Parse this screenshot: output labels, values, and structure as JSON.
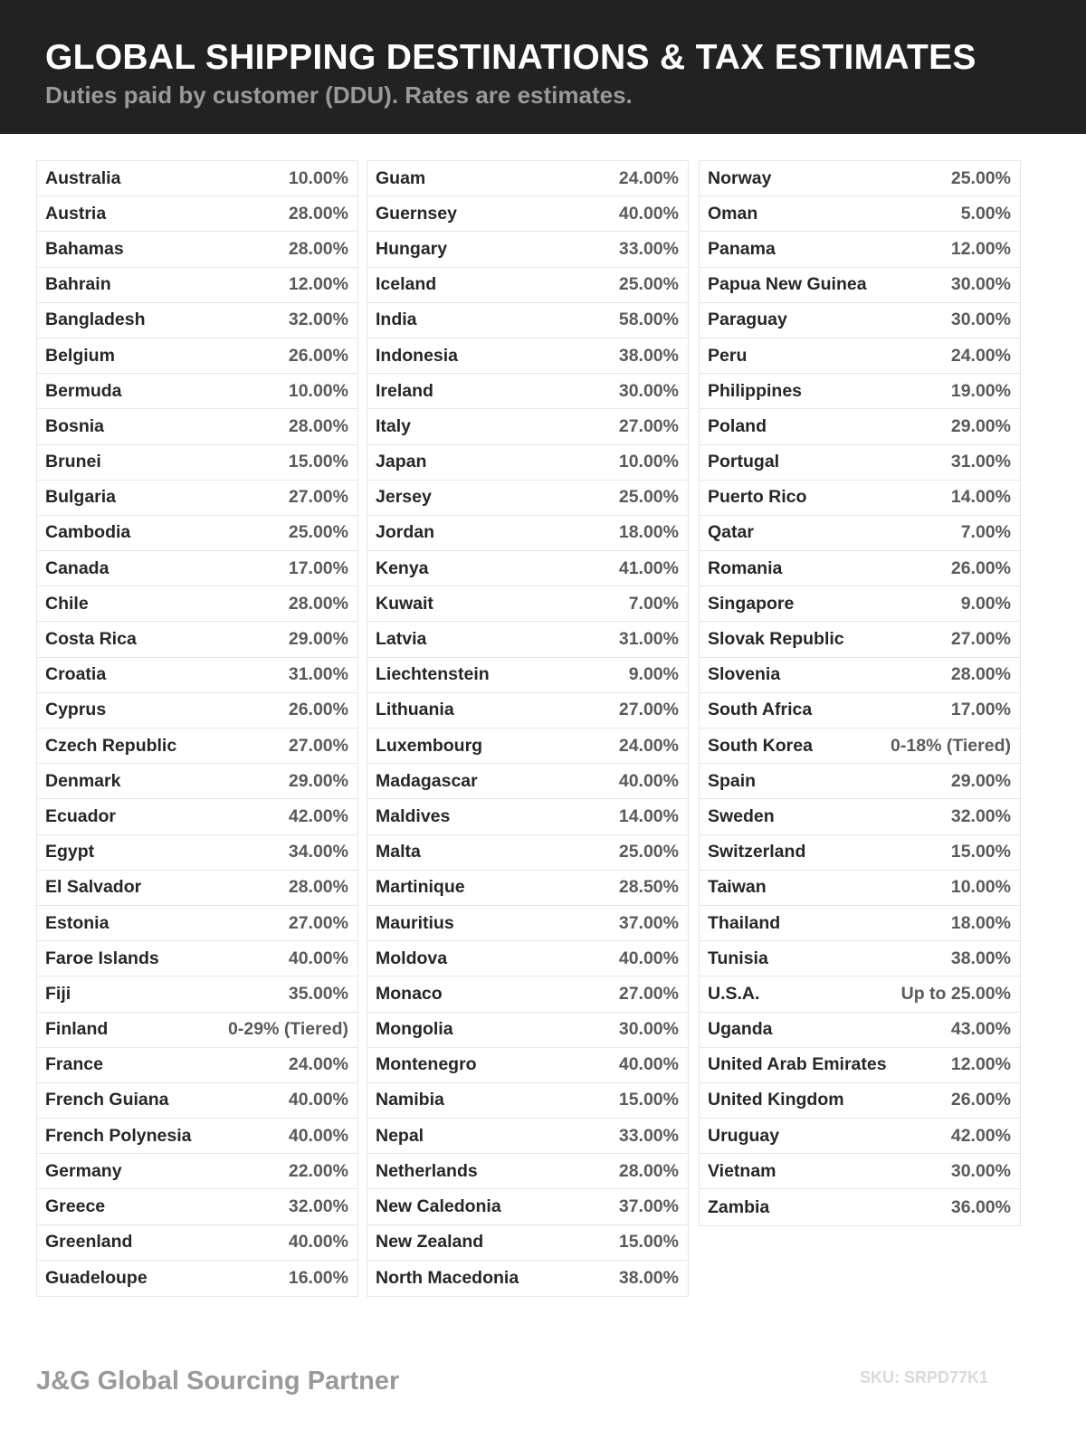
{
  "header": {
    "title": "GLOBAL SHIPPING DESTINATIONS & TAX ESTIMATES",
    "subtitle": "Duties paid by customer (DDU). Rates are estimates."
  },
  "columns": [
    [
      {
        "country": "Australia",
        "rate": "10.00%"
      },
      {
        "country": "Austria",
        "rate": "28.00%"
      },
      {
        "country": "Bahamas",
        "rate": "28.00%"
      },
      {
        "country": "Bahrain",
        "rate": "12.00%"
      },
      {
        "country": "Bangladesh",
        "rate": "32.00%"
      },
      {
        "country": "Belgium",
        "rate": "26.00%"
      },
      {
        "country": "Bermuda",
        "rate": "10.00%"
      },
      {
        "country": "Bosnia",
        "rate": "28.00%"
      },
      {
        "country": "Brunei",
        "rate": "15.00%"
      },
      {
        "country": "Bulgaria",
        "rate": "27.00%"
      },
      {
        "country": "Cambodia",
        "rate": "25.00%"
      },
      {
        "country": "Canada",
        "rate": "17.00%"
      },
      {
        "country": "Chile",
        "rate": "28.00%"
      },
      {
        "country": "Costa Rica",
        "rate": "29.00%"
      },
      {
        "country": "Croatia",
        "rate": "31.00%"
      },
      {
        "country": "Cyprus",
        "rate": "26.00%"
      },
      {
        "country": "Czech Republic",
        "rate": "27.00%"
      },
      {
        "country": "Denmark",
        "rate": "29.00%"
      },
      {
        "country": "Ecuador",
        "rate": "42.00%"
      },
      {
        "country": "Egypt",
        "rate": "34.00%"
      },
      {
        "country": "El Salvador",
        "rate": "28.00%"
      },
      {
        "country": "Estonia",
        "rate": "27.00%"
      },
      {
        "country": "Faroe Islands",
        "rate": "40.00%"
      },
      {
        "country": "Fiji",
        "rate": "35.00%"
      },
      {
        "country": "Finland",
        "rate": "0-29% (Tiered)"
      },
      {
        "country": "France",
        "rate": "24.00%"
      },
      {
        "country": "French Guiana",
        "rate": "40.00%"
      },
      {
        "country": "French Polynesia",
        "rate": "40.00%"
      },
      {
        "country": "Germany",
        "rate": "22.00%"
      },
      {
        "country": "Greece",
        "rate": "32.00%"
      },
      {
        "country": "Greenland",
        "rate": "40.00%"
      },
      {
        "country": "Guadeloupe",
        "rate": "16.00%"
      }
    ],
    [
      {
        "country": "Guam",
        "rate": "24.00%"
      },
      {
        "country": "Guernsey",
        "rate": "40.00%"
      },
      {
        "country": "Hungary",
        "rate": "33.00%"
      },
      {
        "country": "Iceland",
        "rate": "25.00%"
      },
      {
        "country": "India",
        "rate": "58.00%"
      },
      {
        "country": "Indonesia",
        "rate": "38.00%"
      },
      {
        "country": "Ireland",
        "rate": "30.00%"
      },
      {
        "country": "Italy",
        "rate": "27.00%"
      },
      {
        "country": "Japan",
        "rate": "10.00%"
      },
      {
        "country": "Jersey",
        "rate": "25.00%"
      },
      {
        "country": "Jordan",
        "rate": "18.00%"
      },
      {
        "country": "Kenya",
        "rate": "41.00%"
      },
      {
        "country": "Kuwait",
        "rate": "7.00%"
      },
      {
        "country": "Latvia",
        "rate": "31.00%"
      },
      {
        "country": "Liechtenstein",
        "rate": "9.00%"
      },
      {
        "country": "Lithuania",
        "rate": "27.00%"
      },
      {
        "country": "Luxembourg",
        "rate": "24.00%"
      },
      {
        "country": "Madagascar",
        "rate": "40.00%"
      },
      {
        "country": "Maldives",
        "rate": "14.00%"
      },
      {
        "country": "Malta",
        "rate": "25.00%"
      },
      {
        "country": "Martinique",
        "rate": "28.50%"
      },
      {
        "country": "Mauritius",
        "rate": "37.00%"
      },
      {
        "country": "Moldova",
        "rate": "40.00%"
      },
      {
        "country": "Monaco",
        "rate": "27.00%"
      },
      {
        "country": "Mongolia",
        "rate": "30.00%"
      },
      {
        "country": "Montenegro",
        "rate": "40.00%"
      },
      {
        "country": "Namibia",
        "rate": "15.00%"
      },
      {
        "country": "Nepal",
        "rate": "33.00%"
      },
      {
        "country": "Netherlands",
        "rate": "28.00%"
      },
      {
        "country": "New Caledonia",
        "rate": "37.00%"
      },
      {
        "country": "New Zealand",
        "rate": "15.00%"
      },
      {
        "country": "North Macedonia",
        "rate": "38.00%"
      }
    ],
    [
      {
        "country": "Norway",
        "rate": "25.00%"
      },
      {
        "country": "Oman",
        "rate": "5.00%"
      },
      {
        "country": "Panama",
        "rate": "12.00%"
      },
      {
        "country": "Papua New Guinea",
        "rate": "30.00%"
      },
      {
        "country": "Paraguay",
        "rate": "30.00%"
      },
      {
        "country": "Peru",
        "rate": "24.00%"
      },
      {
        "country": "Philippines",
        "rate": "19.00%"
      },
      {
        "country": "Poland",
        "rate": "29.00%"
      },
      {
        "country": "Portugal",
        "rate": "31.00%"
      },
      {
        "country": "Puerto Rico",
        "rate": "14.00%"
      },
      {
        "country": "Qatar",
        "rate": "7.00%"
      },
      {
        "country": "Romania",
        "rate": "26.00%"
      },
      {
        "country": "Singapore",
        "rate": "9.00%"
      },
      {
        "country": "Slovak Republic",
        "rate": "27.00%"
      },
      {
        "country": "Slovenia",
        "rate": "28.00%"
      },
      {
        "country": "South Africa",
        "rate": "17.00%"
      },
      {
        "country": "South Korea",
        "rate": "0-18% (Tiered)"
      },
      {
        "country": "Spain",
        "rate": "29.00%"
      },
      {
        "country": "Sweden",
        "rate": "32.00%"
      },
      {
        "country": "Switzerland",
        "rate": "15.00%"
      },
      {
        "country": "Taiwan",
        "rate": "10.00%"
      },
      {
        "country": "Thailand",
        "rate": "18.00%"
      },
      {
        "country": "Tunisia",
        "rate": "38.00%"
      },
      {
        "country": "U.S.A.",
        "rate": "Up to 25.00%"
      },
      {
        "country": "Uganda",
        "rate": "43.00%"
      },
      {
        "country": "United Arab Emirates",
        "rate": "12.00%"
      },
      {
        "country": "United Kingdom",
        "rate": "26.00%"
      },
      {
        "country": "Uruguay",
        "rate": "42.00%"
      },
      {
        "country": "Vietnam",
        "rate": "30.00%"
      },
      {
        "country": "Zambia",
        "rate": "36.00%"
      }
    ]
  ],
  "footer": {
    "brand": "J&G Global Sourcing Partner",
    "sku": "SKU: SRPD77K1"
  },
  "colors": {
    "header_bg": "#222222",
    "title": "#ffffff",
    "subtitle": "#9a9a9a",
    "name": "#262626",
    "rate": "#5a5a5a",
    "border": "#e6e6e6"
  }
}
